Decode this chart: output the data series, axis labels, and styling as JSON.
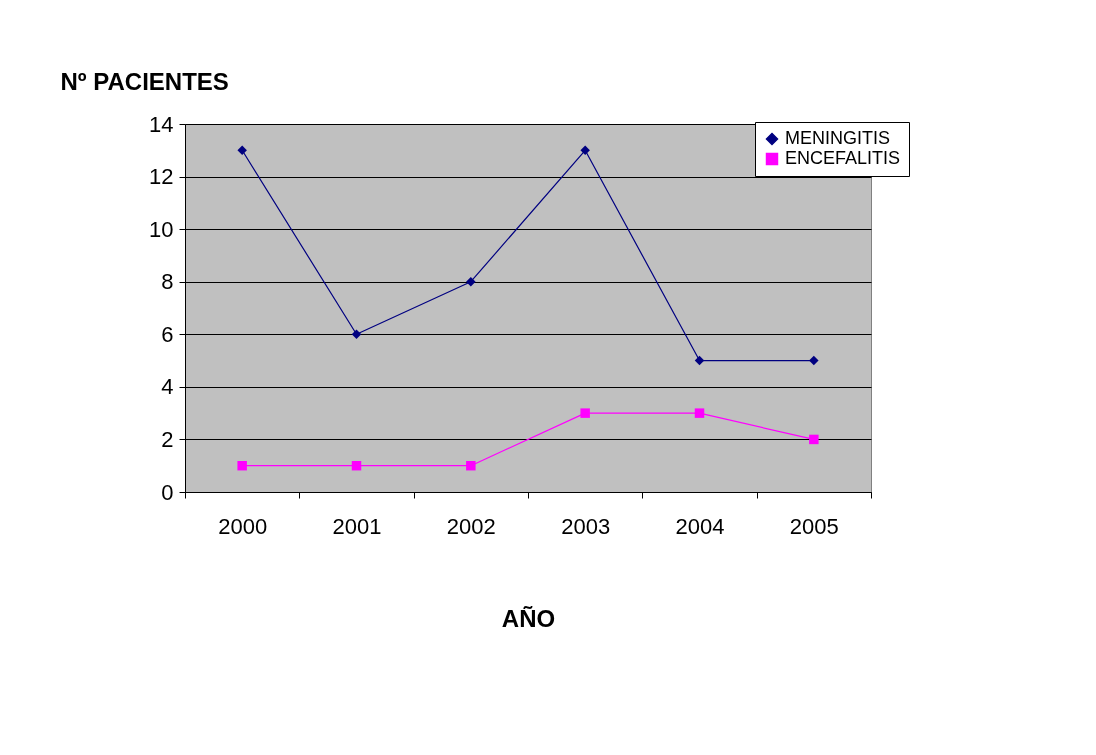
{
  "chart_data": {
    "type": "line",
    "ylabel": "Nº PACIENTES",
    "xlabel": "AÑO",
    "categories": [
      "2000",
      "2001",
      "2002",
      "2003",
      "2004",
      "2005"
    ],
    "series": [
      {
        "name": "MENINGITIS",
        "color": "#000080",
        "marker": "diamond",
        "values": [
          13,
          6,
          8,
          13,
          5,
          5
        ]
      },
      {
        "name": "ENCEFALITIS",
        "color": "#ff00ff",
        "marker": "square",
        "values": [
          1,
          1,
          1,
          3,
          3,
          2
        ]
      }
    ],
    "ylim": [
      0,
      14
    ],
    "yticks": [
      0,
      2,
      4,
      6,
      8,
      10,
      12,
      14
    ],
    "grid": "y",
    "legend": "top right",
    "line_style": "solid"
  }
}
